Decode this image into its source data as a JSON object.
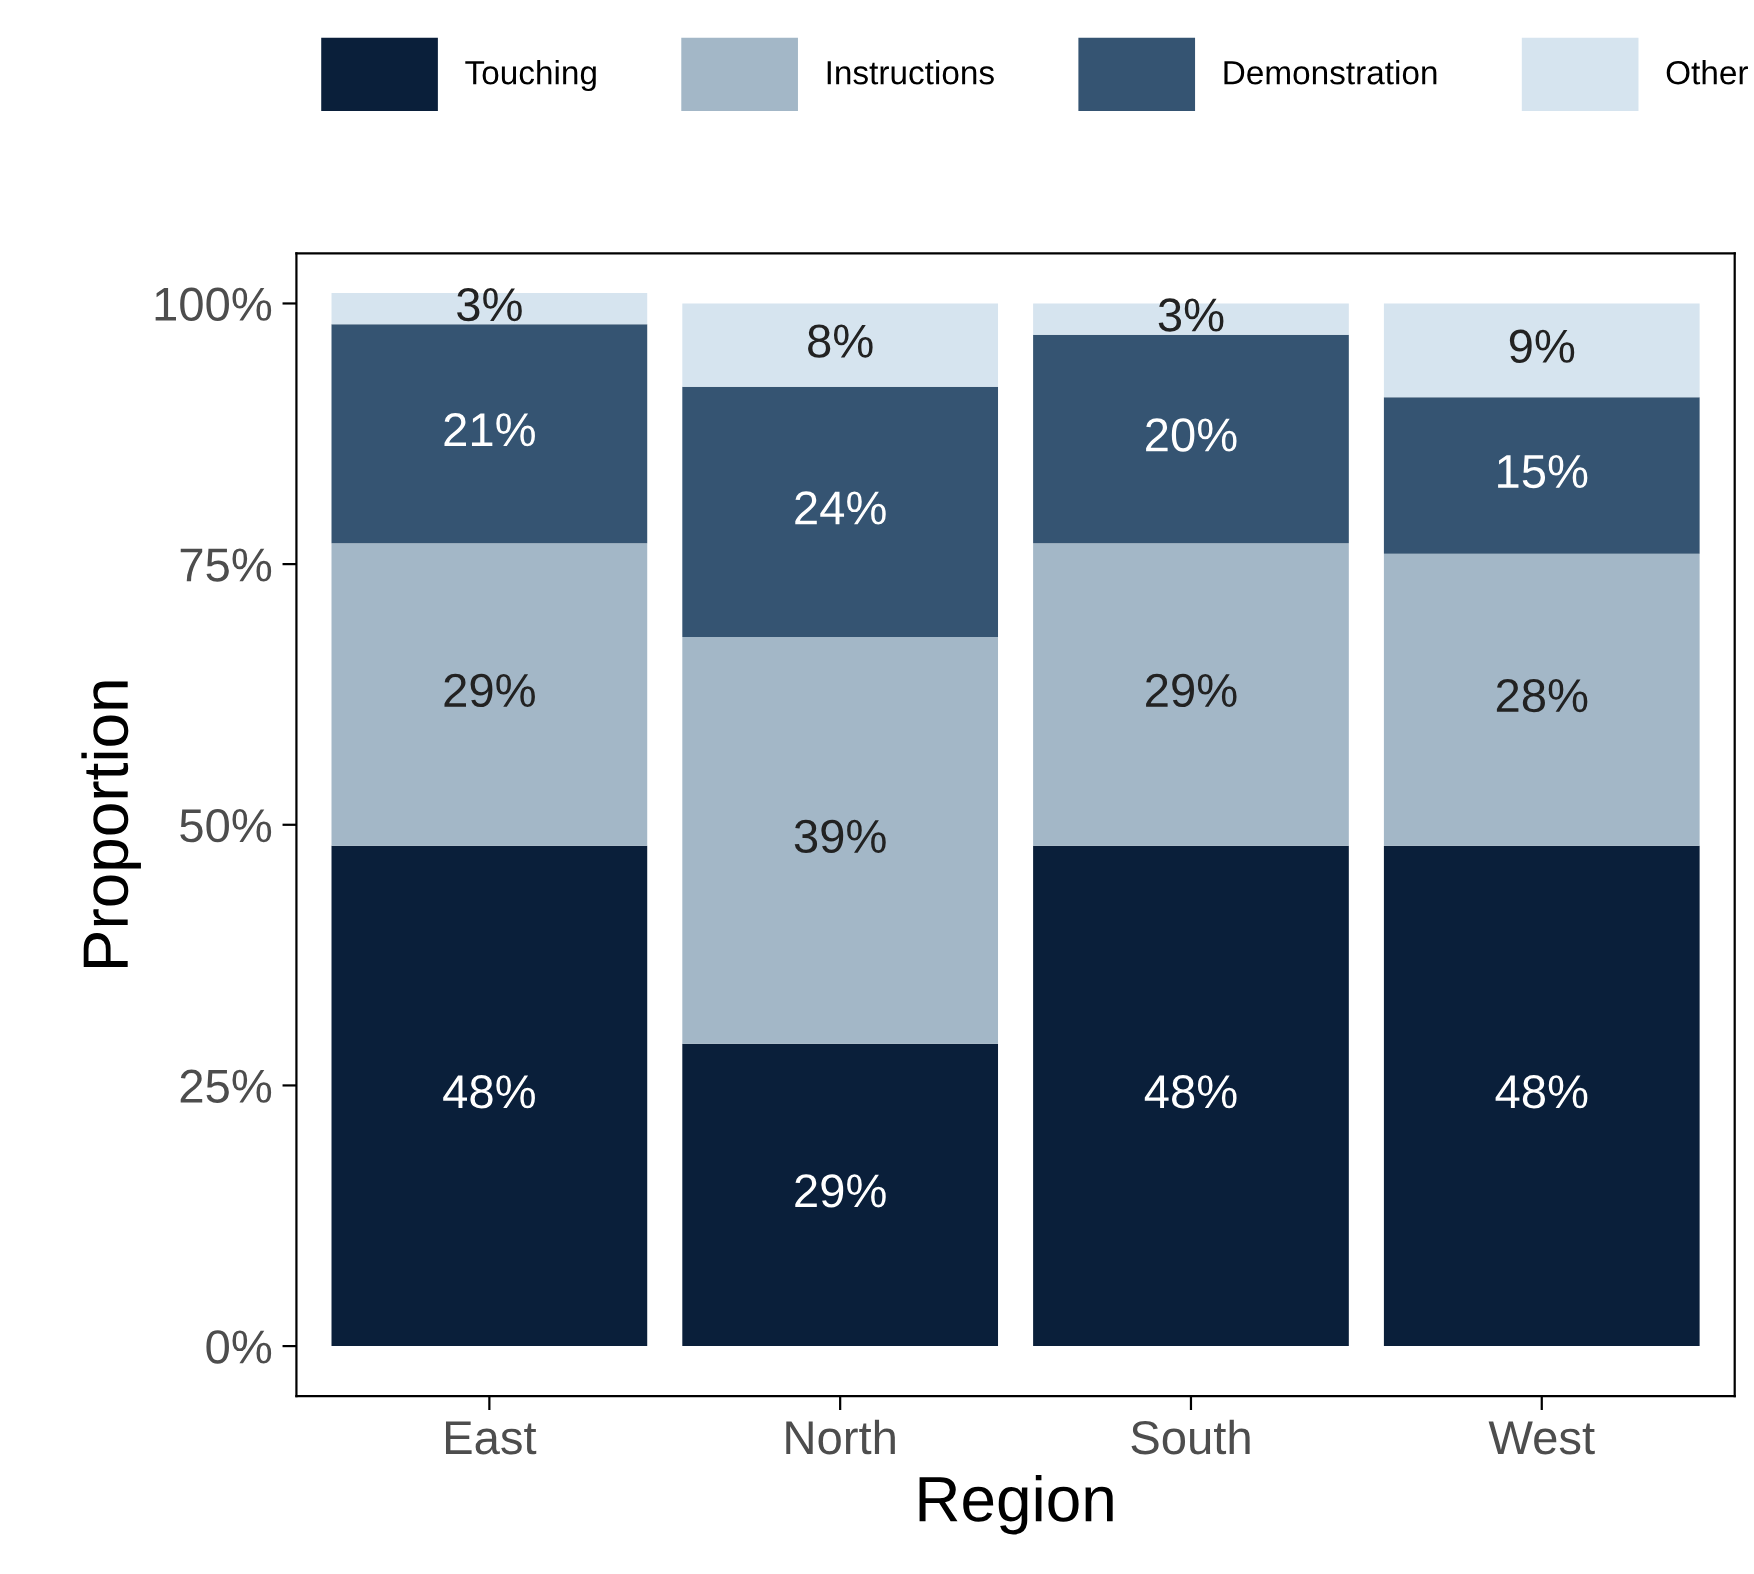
{
  "chart_data": {
    "type": "bar",
    "stacked": true,
    "xlabel": "Region",
    "ylabel": "Proportion",
    "categories": [
      "East",
      "North",
      "South",
      "West"
    ],
    "series": [
      {
        "name": "Touching",
        "color": "#0a1f3a",
        "values": [
          48,
          29,
          48,
          48
        ],
        "value_labels": [
          "48%",
          "29%",
          "48%",
          "48%"
        ]
      },
      {
        "name": "Instructions",
        "color": "#a3b7c7",
        "values": [
          29,
          39,
          29,
          28
        ],
        "value_labels": [
          "29%",
          "39%",
          "29%",
          "28%"
        ]
      },
      {
        "name": "Demonstration",
        "color": "#355472",
        "values": [
          21,
          24,
          20,
          15
        ],
        "value_labels": [
          "21%",
          "24%",
          "20%",
          "15%"
        ]
      },
      {
        "name": "Other",
        "color": "#d6e4ef",
        "values": [
          3,
          8,
          3,
          9
        ],
        "value_labels": [
          "3%",
          "8%",
          "3%",
          "9%"
        ]
      }
    ],
    "ylim": [
      -4.8,
      104.8
    ],
    "yticks": [
      {
        "value": 0,
        "label": "0%"
      },
      {
        "value": 25,
        "label": "25%"
      },
      {
        "value": 50,
        "label": "50%"
      },
      {
        "value": 75,
        "label": "75%"
      },
      {
        "value": 100,
        "label": "100%"
      }
    ],
    "grid": false,
    "legend": "top"
  }
}
